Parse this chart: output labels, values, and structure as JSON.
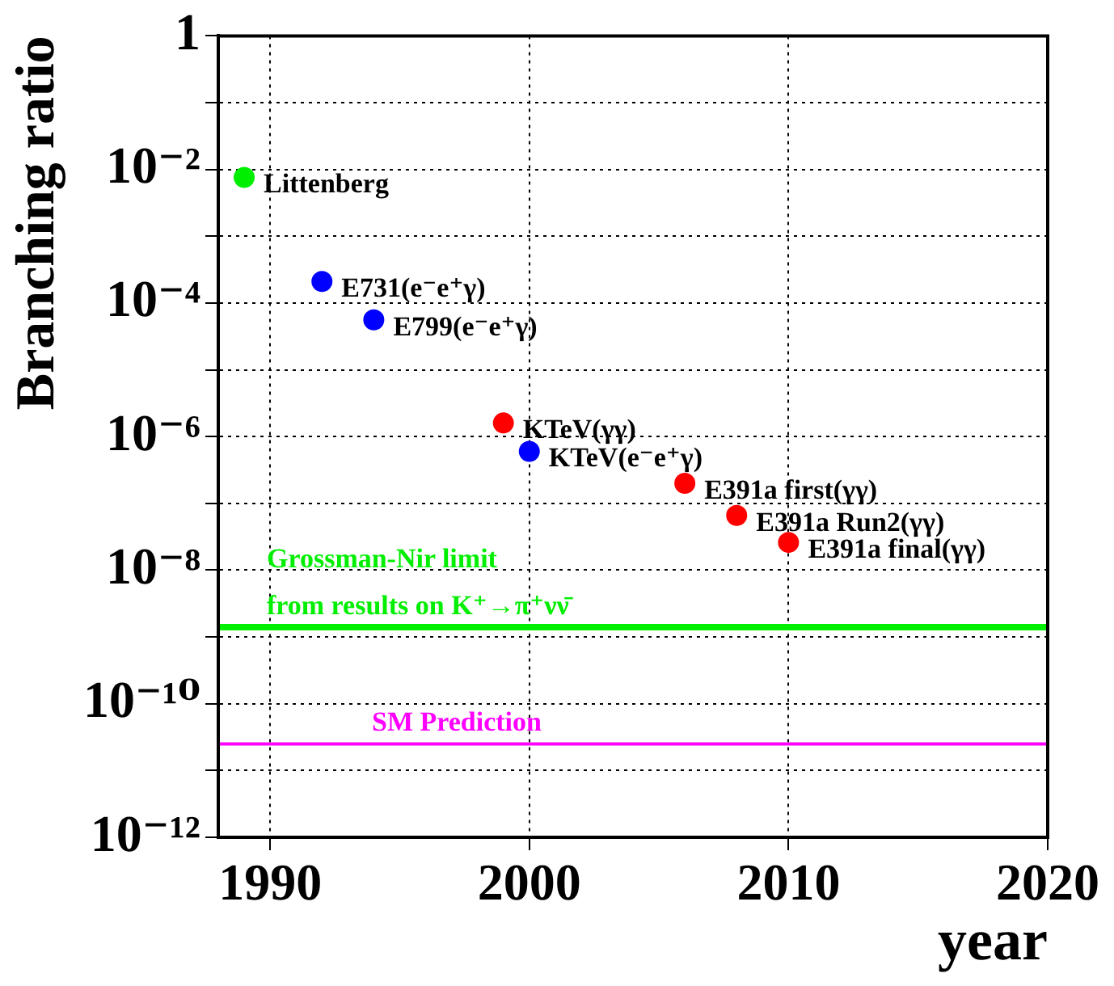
{
  "chart_data": {
    "type": "scatter",
    "xlabel": "year",
    "ylabel": "Branching ratio",
    "x": [
      1989,
      1992,
      1994,
      1999,
      2000,
      2006,
      2008,
      2010
    ],
    "values": [
      0.0076,
      0.00021,
      5.6e-05,
      1.6e-06,
      6e-07,
      2e-07,
      6.6e-08,
      2.6e-08
    ],
    "colors": [
      "#00ee00",
      "#0000ff",
      "#0000ff",
      "#ff0000",
      "#0000ff",
      "#ff0000",
      "#ff0000",
      "#ff0000"
    ],
    "marker": "circle",
    "log": "y",
    "grid": true,
    "legend": false,
    "xlim": [
      1988,
      2020
    ],
    "xticks": [
      1990,
      2000,
      2010,
      2020
    ],
    "ylim": [
      1e-12,
      1
    ],
    "yticks": [
      {
        "value": 1e-12,
        "label": "10⁻¹²"
      },
      {
        "value": 1e-11,
        "label": null
      },
      {
        "value": 1e-10,
        "label": "10⁻¹⁰"
      },
      {
        "value": 1e-09,
        "label": null
      },
      {
        "value": 1e-08,
        "label": "10⁻⁸"
      },
      {
        "value": 1e-07,
        "label": null
      },
      {
        "value": 1e-06,
        "label": "10⁻⁶"
      },
      {
        "value": 1e-05,
        "label": null
      },
      {
        "value": 0.0001,
        "label": "10⁻⁴"
      },
      {
        "value": 0.001,
        "label": null
      },
      {
        "value": 0.01,
        "label": "10⁻²"
      },
      {
        "value": 0.1,
        "label": null
      },
      {
        "value": 1,
        "label": "1"
      }
    ],
    "ref_lines": [
      {
        "axis": "y",
        "value": 1.4e-09,
        "label": "Grossman-Nir limit\nfrom results on K⁺→π⁺νν̄",
        "color": "#00ee00"
      },
      {
        "axis": "y",
        "value": 2.5e-11,
        "label": "SM Prediction",
        "color": "#ff00ff"
      }
    ],
    "annotations": [
      {
        "text": "Littenberg",
        "x": 1989,
        "y": 0.0076
      },
      {
        "text": "E731(e⁻e⁺γ)",
        "x": 1992,
        "y": 0.00021
      },
      {
        "text": "E799(e⁻e⁺γ)",
        "x": 1994,
        "y": 5.6e-05
      },
      {
        "text": "KTeV(γγ)",
        "x": 1999,
        "y": 1.6e-06
      },
      {
        "text": "KTeV(e⁻e⁺γ)",
        "x": 2000,
        "y": 6e-07
      },
      {
        "text": "E391a first(γγ)",
        "x": 2006,
        "y": 2e-07
      },
      {
        "text": "E391a Run2(γγ)",
        "x": 2008,
        "y": 6.6e-08
      },
      {
        "text": "E391a final(γγ)",
        "x": 2010,
        "y": 2.6e-08
      }
    ]
  }
}
